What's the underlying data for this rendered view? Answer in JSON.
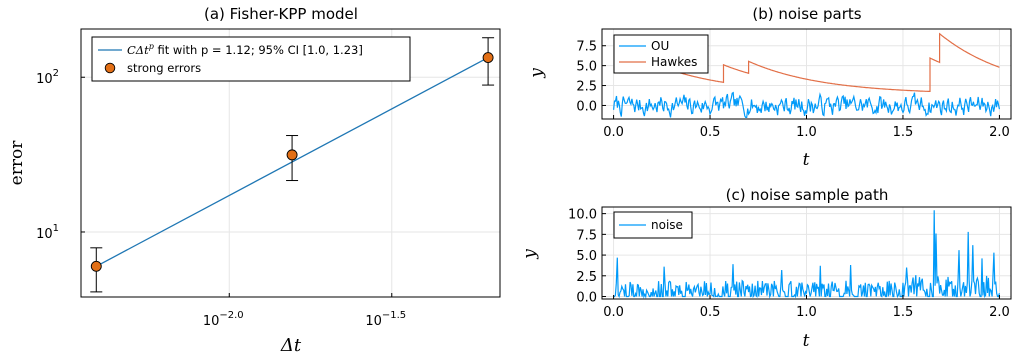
{
  "chart_data": [
    {
      "type": "scatter",
      "title": "(a) Fisher-KPP model",
      "xlabel": "Δt",
      "ylabel": "error",
      "xscale": "log10",
      "yscale": "log10",
      "xticks": [
        0.01,
        0.0316
      ],
      "xtick_labels": [
        {
          "base": "10",
          "exp": "−2.0"
        },
        {
          "base": "10",
          "exp": "−1.5"
        }
      ],
      "yticks": [
        10,
        100
      ],
      "ytick_labels": [
        {
          "base": "10",
          "exp": "1"
        },
        {
          "base": "10",
          "exp": "2"
        }
      ],
      "xlim": [
        0.0035,
        0.068
      ],
      "ylim": [
        3.8,
        205
      ],
      "grid": true,
      "legend_position": "top-left",
      "series": [
        {
          "name": "strong errors",
          "kind": "points_with_errorbars",
          "color": "#e26f16",
          "x": [
            0.0039,
            0.0156,
            0.0625
          ],
          "y": [
            6.0,
            31.5,
            134
          ],
          "yerr_low": [
            4.1,
            21.5,
            89
          ],
          "yerr_high": [
            7.9,
            42,
            180
          ]
        },
        {
          "name": "CΔt^p fit with p = 1.12; 95% CI [1.0, 1.23]",
          "kind": "fit_line",
          "color": "#1f77b4",
          "x": [
            0.0039,
            0.0625
          ],
          "y": [
            6.0,
            134
          ]
        }
      ],
      "legend": {
        "fit_label_math": "CΔt",
        "fit_label_sup": "p",
        "fit_label_rest": " fit with p = 1.12; 95% CI [1.0, 1.23]",
        "points_label": "strong errors"
      }
    },
    {
      "type": "line",
      "title": "(b) noise parts",
      "xlabel": "t",
      "ylabel": "y",
      "xlim": [
        -0.06,
        2.06
      ],
      "ylim": [
        -1.7,
        9.6
      ],
      "xticks": [
        0.0,
        0.5,
        1.0,
        1.5,
        2.0
      ],
      "xtick_labels": [
        "0.0",
        "0.5",
        "1.0",
        "1.5",
        "2.0"
      ],
      "yticks": [
        0.0,
        2.5,
        5.0,
        7.5
      ],
      "ytick_labels": [
        "0.0",
        "2.5",
        "5.0",
        "7.5"
      ],
      "grid": true,
      "legend_position": "top-left",
      "series": [
        {
          "name": "OU",
          "color": "#009af9",
          "kind": "noise",
          "x_range": [
            0,
            2
          ],
          "mean": 0.0,
          "amplitude": 0.8,
          "seed": 7
        },
        {
          "name": "Hawkes",
          "color": "#e26f47",
          "kind": "decaying_jumps",
          "t0": 0.0,
          "y0": 4.3,
          "baseline": 1.4,
          "decay": 2.6,
          "jumps": [
            [
              0.03,
              1.1
            ],
            [
              0.1,
              0.8
            ],
            [
              0.19,
              0.9
            ],
            [
              0.57,
              2.2
            ],
            [
              0.7,
              1.5
            ],
            [
              1.64,
              4.2
            ],
            [
              1.69,
              3.6
            ]
          ]
        }
      ]
    },
    {
      "type": "line",
      "title": "(c) noise sample path",
      "xlabel": "t",
      "ylabel": "y",
      "xlim": [
        -0.06,
        2.06
      ],
      "ylim": [
        -0.3,
        10.8
      ],
      "xticks": [
        0.0,
        0.5,
        1.0,
        1.5,
        2.0
      ],
      "xtick_labels": [
        "0.0",
        "0.5",
        "1.0",
        "1.5",
        "2.0"
      ],
      "yticks": [
        0.0,
        2.5,
        5.0,
        7.5,
        10.0
      ],
      "ytick_labels": [
        "0.0",
        "2.5",
        "5.0",
        "7.5",
        "10.0"
      ],
      "grid": true,
      "legend_position": "top-left",
      "series": [
        {
          "name": "noise",
          "color": "#009af9",
          "kind": "spiky",
          "x_range": [
            0,
            2
          ],
          "seed": 11,
          "spikes": [
            [
              0.02,
              4.7
            ],
            [
              0.26,
              3.6
            ],
            [
              0.62,
              3.9
            ],
            [
              0.87,
              3.2
            ],
            [
              1.07,
              3.7
            ],
            [
              1.23,
              3.8
            ],
            [
              1.52,
              3.5
            ],
            [
              1.66,
              10.4
            ],
            [
              1.67,
              7.6
            ],
            [
              1.79,
              5.6
            ],
            [
              1.84,
              7.8
            ],
            [
              1.86,
              6.2
            ],
            [
              1.91,
              4.6
            ],
            [
              1.97,
              5.3
            ]
          ]
        }
      ]
    }
  ]
}
